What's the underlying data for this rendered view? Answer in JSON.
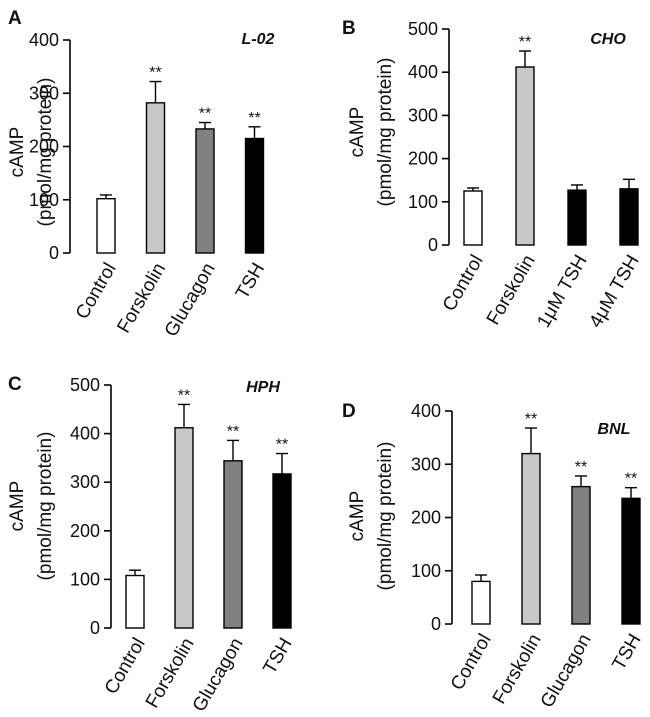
{
  "chart_data": [
    {
      "type": "bar",
      "panel_label": "A",
      "title": "L-02",
      "ylabel_line1": "cAMP",
      "ylabel_line2": "(pmol/mg protein)",
      "categories": [
        "Control",
        "Forskolin",
        "Glucagon",
        "TSH"
      ],
      "values": [
        102,
        282,
        233,
        215
      ],
      "errors": [
        7,
        40,
        12,
        22
      ],
      "significance": [
        "",
        "**",
        "**",
        "**"
      ],
      "bar_colors": [
        "#ffffff",
        "#c8c8c8",
        "#808080",
        "#000000"
      ],
      "ylim": [
        0,
        400
      ],
      "yticks": [
        "0",
        "100",
        "200",
        "300",
        "400"
      ],
      "grid": false,
      "legend": "none"
    },
    {
      "type": "bar",
      "panel_label": "B",
      "title": "CHO",
      "ylabel_line1": "cAMP",
      "ylabel_line2": "(pmol/mg protein)",
      "categories": [
        "Control",
        "Forskolin",
        "1μM TSH",
        "4μM TSH"
      ],
      "values": [
        125,
        412,
        127,
        130
      ],
      "errors": [
        7,
        37,
        12,
        22
      ],
      "significance": [
        "",
        "**",
        "",
        ""
      ],
      "bar_colors": [
        "#ffffff",
        "#c8c8c8",
        "#000000",
        "#000000"
      ],
      "ylim": [
        0,
        500
      ],
      "yticks": [
        "0",
        "100",
        "200",
        "300",
        "400",
        "500"
      ],
      "grid": false,
      "legend": "none"
    },
    {
      "type": "bar",
      "panel_label": "C",
      "title": "HPH",
      "ylabel_line1": "cAMP",
      "ylabel_line2": "(pmol/mg protein)",
      "categories": [
        "Control",
        "Forskolin",
        "Glucagon",
        "TSH"
      ],
      "values": [
        108,
        412,
        344,
        317
      ],
      "errors": [
        11,
        48,
        42,
        42
      ],
      "significance": [
        "",
        "**",
        "**",
        "**"
      ],
      "bar_colors": [
        "#ffffff",
        "#c8c8c8",
        "#808080",
        "#000000"
      ],
      "ylim": [
        0,
        500
      ],
      "yticks": [
        "0",
        "100",
        "200",
        "300",
        "400",
        "500"
      ],
      "grid": false,
      "legend": "none"
    },
    {
      "type": "bar",
      "panel_label": "D",
      "title": "BNL",
      "ylabel_line1": "cAMP",
      "ylabel_line2": "(pmol/mg protein)",
      "categories": [
        "Control",
        "Forskolin",
        "Glucagon",
        "TSH"
      ],
      "values": [
        80,
        320,
        258,
        236
      ],
      "errors": [
        12,
        48,
        20,
        20
      ],
      "significance": [
        "",
        "**",
        "**",
        "**"
      ],
      "bar_colors": [
        "#ffffff",
        "#c8c8c8",
        "#808080",
        "#000000"
      ],
      "ylim": [
        0,
        400
      ],
      "yticks": [
        "0",
        "100",
        "200",
        "300",
        "400"
      ],
      "grid": false,
      "legend": "none"
    }
  ]
}
